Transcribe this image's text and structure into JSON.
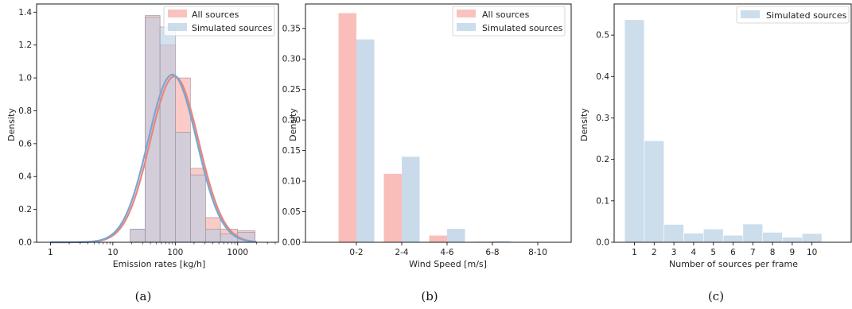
{
  "colors": {
    "all_sources_fill": "#f7a8a2",
    "simulated_fill": "#b7cfe4",
    "all_sources_line": "#e8867d",
    "simulated_line": "#7aa6d0",
    "overlap_fill": "#b9a3b3"
  },
  "chart_data": [
    {
      "type": "bar",
      "caption": "(a)",
      "xlabel": "Emission rates [kg/h]",
      "ylabel": "Density",
      "xscale": "log",
      "xlim": [
        0.6,
        4500
      ],
      "ylim": [
        0,
        1.45
      ],
      "xticks": [
        1,
        10,
        100,
        1000
      ],
      "xtick_labels": [
        "1",
        "10",
        "100",
        "1000"
      ],
      "yticks": [
        0.0,
        0.2,
        0.4,
        0.6,
        0.8,
        1.0,
        1.2,
        1.4
      ],
      "ytick_labels": [
        "0.0",
        "0.2",
        "0.4",
        "0.6",
        "0.8",
        "1.0",
        "1.2",
        "1.4"
      ],
      "legend": {
        "placement": "top-right",
        "entries": [
          "All sources",
          "Simulated sources"
        ]
      },
      "bin_edges": [
        19,
        33,
        57,
        100,
        175,
        305,
        530,
        1000,
        1900
      ],
      "series": [
        {
          "name": "All sources",
          "values": [
            0.08,
            1.38,
            1.2,
            1.0,
            0.45,
            0.15,
            0.08,
            0.07
          ]
        },
        {
          "name": "Simulated sources",
          "values": [
            0.08,
            1.37,
            1.31,
            0.67,
            0.41,
            0.08,
            0.05,
            0.06
          ]
        }
      ],
      "density_curves": [
        {
          "name": "All sources",
          "peak_x": 97,
          "peak_y": 1.01,
          "sigma_log10": 0.39
        },
        {
          "name": "Simulated sources",
          "peak_x": 90,
          "peak_y": 1.02,
          "sigma_log10": 0.39
        }
      ]
    },
    {
      "type": "bar",
      "caption": "(b)",
      "xlabel": "Wind Speed [m/s]",
      "ylabel": "Density",
      "ylim": [
        0,
        0.39
      ],
      "categories": [
        "0-2",
        "2-4",
        "4-6",
        "6-8",
        "8-10"
      ],
      "yticks": [
        0.0,
        0.05,
        0.1,
        0.15,
        0.2,
        0.25,
        0.3,
        0.35
      ],
      "ytick_labels": [
        "0.00",
        "0.05",
        "0.10",
        "0.15",
        "0.20",
        "0.25",
        "0.30",
        "0.35"
      ],
      "legend": {
        "placement": "top-right",
        "entries": [
          "All sources",
          "Simulated sources"
        ]
      },
      "series": [
        {
          "name": "All sources",
          "values": [
            0.375,
            0.112,
            0.011,
            0.001,
            0.0
          ]
        },
        {
          "name": "Simulated sources",
          "values": [
            0.332,
            0.14,
            0.022,
            0.002,
            0.0
          ]
        }
      ]
    },
    {
      "type": "bar",
      "caption": "(c)",
      "xlabel": "Number of sources per frame",
      "ylabel": "Density",
      "ylim": [
        0,
        0.575
      ],
      "categories": [
        "1",
        "2",
        "3",
        "4",
        "5",
        "6",
        "7",
        "8",
        "9",
        "10"
      ],
      "yticks": [
        0.0,
        0.1,
        0.2,
        0.3,
        0.4,
        0.5
      ],
      "ytick_labels": [
        "0.0",
        "0.1",
        "0.2",
        "0.3",
        "0.4",
        "0.5"
      ],
      "legend": {
        "placement": "top-right",
        "entries": [
          "Simulated sources"
        ]
      },
      "series": [
        {
          "name": "Simulated sources",
          "values": [
            0.537,
            0.245,
            0.043,
            0.022,
            0.032,
            0.017,
            0.044,
            0.024,
            0.012,
            0.021
          ]
        }
      ]
    }
  ]
}
